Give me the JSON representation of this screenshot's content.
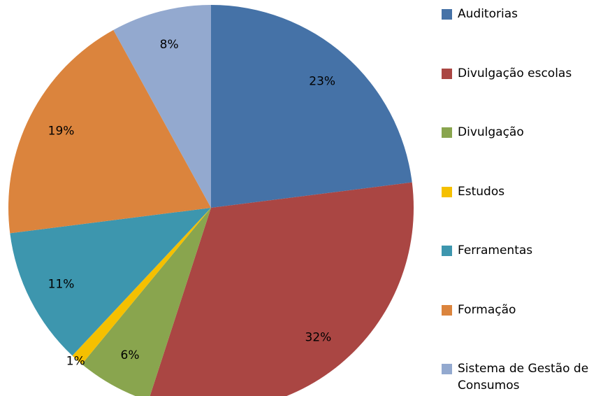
{
  "chart_data": {
    "type": "pie",
    "categories": [
      "Auditorias",
      "Divulgação escolas",
      "Divulgação",
      "Estudos",
      "Ferramentas",
      "Formação",
      "Sistema de Gestão de Consumos"
    ],
    "values": [
      23,
      32,
      6,
      1,
      11,
      19,
      8
    ],
    "value_labels": [
      "23%",
      "32%",
      "6%",
      "1%",
      "11%",
      "19%",
      "8%"
    ],
    "colors": [
      "#4572a7",
      "#aa4643",
      "#89a54e",
      "#f5c000",
      "#3d96ae",
      "#db843d",
      "#93a9cf"
    ],
    "legend": "right"
  }
}
